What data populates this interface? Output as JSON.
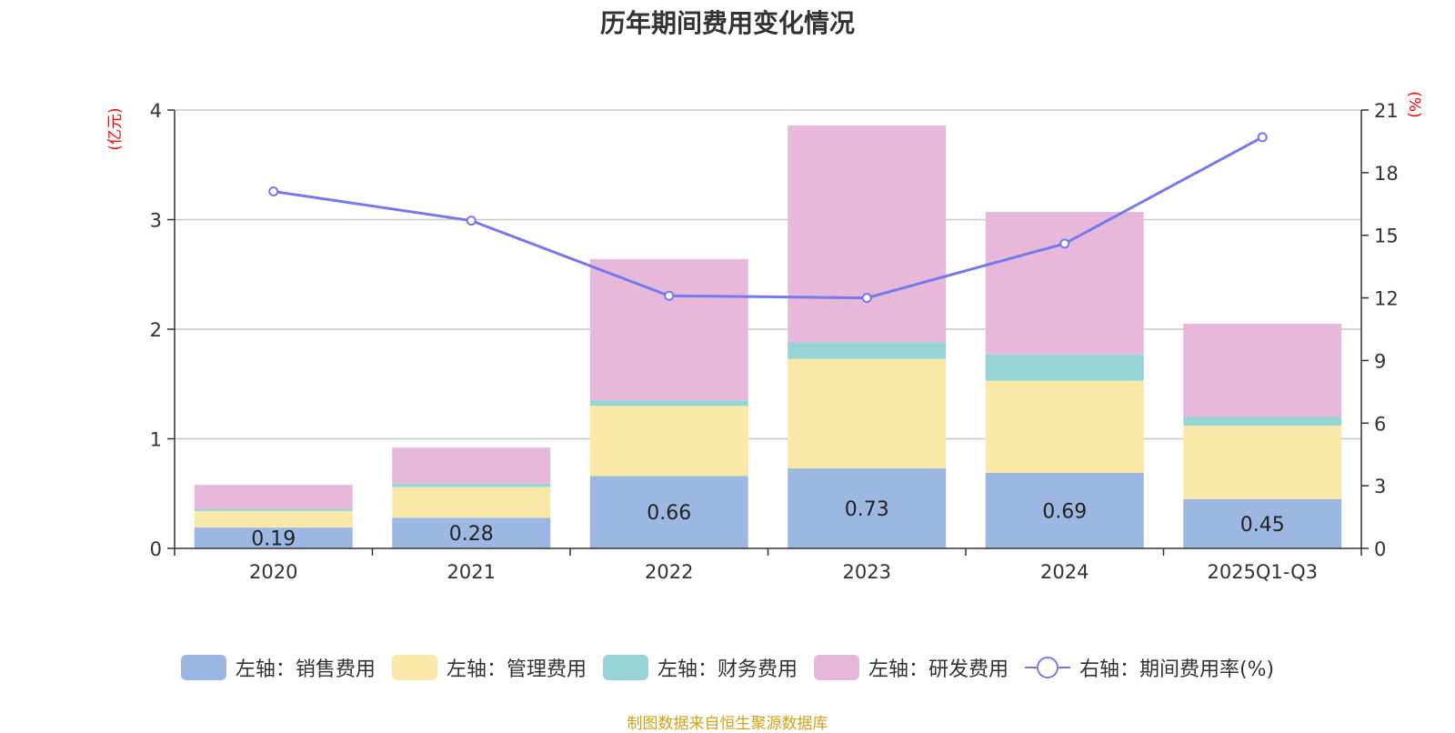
{
  "title": "历年期间费用变化情况",
  "source": "制图数据来自恒生聚源数据库",
  "chart_data": {
    "type": "bar",
    "stacked": true,
    "title": "历年期间费用变化情况",
    "categories": [
      "2020",
      "2021",
      "2022",
      "2023",
      "2024",
      "2025Q1-Q3"
    ],
    "left_axis": {
      "unit": "(亿元)",
      "ylim": [
        0,
        4
      ],
      "ticks": [
        "0",
        "1",
        "2",
        "3",
        "4"
      ]
    },
    "right_axis": {
      "unit": "(%)",
      "ylim": [
        0,
        21
      ],
      "ticks": [
        "0",
        "3",
        "6",
        "9",
        "12",
        "15",
        "18",
        "21"
      ]
    },
    "series": [
      {
        "name": "左轴：销售费用",
        "axis": "left",
        "color": "#9cb8e2",
        "values": [
          0.19,
          0.28,
          0.66,
          0.73,
          0.69,
          0.45
        ],
        "labels": [
          "0.19",
          "0.28",
          "0.66",
          "0.73",
          "0.69",
          "0.45"
        ]
      },
      {
        "name": "左轴：管理费用",
        "axis": "left",
        "color": "#f9e8a8",
        "values": [
          0.15,
          0.28,
          0.64,
          1.0,
          0.84,
          0.67
        ]
      },
      {
        "name": "左轴：财务费用",
        "axis": "left",
        "color": "#96d4d6",
        "values": [
          0.02,
          0.03,
          0.05,
          0.15,
          0.24,
          0.08
        ]
      },
      {
        "name": "左轴：研发费用",
        "axis": "left",
        "color": "#e8b8da",
        "values": [
          0.22,
          0.33,
          1.29,
          1.98,
          1.3,
          0.85
        ]
      },
      {
        "name": "右轴：期间费用率(%)",
        "axis": "right",
        "type": "line",
        "color": "#7479ee",
        "values": [
          17.1,
          15.7,
          12.1,
          12.0,
          14.6,
          19.7
        ]
      }
    ]
  }
}
